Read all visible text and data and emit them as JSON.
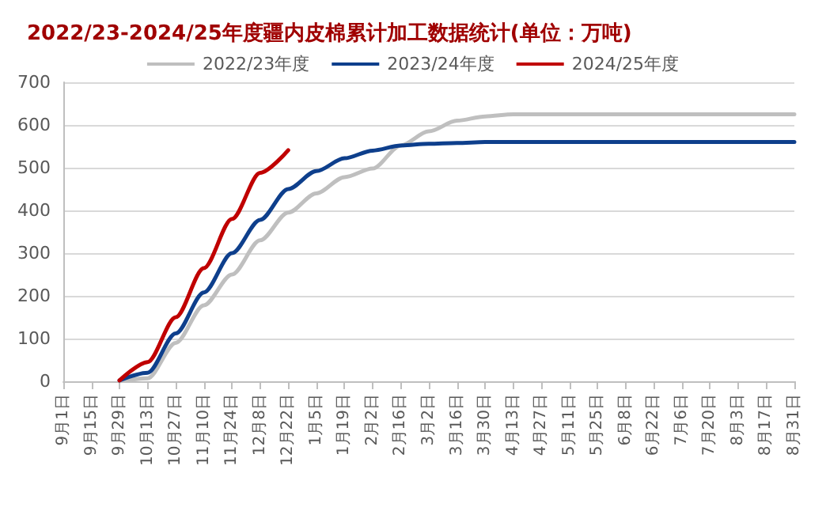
{
  "chart_data": {
    "type": "line",
    "title": "2022/23-2024/25年度疆内皮棉累计加工数据统计(单位：万吨)",
    "categories": [
      "9月1日",
      "9月15日",
      "9月29日",
      "10月13日",
      "10月27日",
      "11月10日",
      "11月24日",
      "12月8日",
      "12月22日",
      "1月5日",
      "1月19日",
      "2月2日",
      "2月16日",
      "3月2日",
      "3月16日",
      "3月30日",
      "4月13日",
      "4月27日",
      "5月11日",
      "5月25日",
      "6月8日",
      "6月22日",
      "7月6日",
      "7月20日",
      "8月3日",
      "8月17日",
      "8月31日"
    ],
    "ylim": [
      0,
      700
    ],
    "yticks": [
      0,
      100,
      200,
      300,
      400,
      500,
      600,
      700
    ],
    "grid": "y",
    "legend": "top",
    "marker": "none",
    "line_style": "solid",
    "series": [
      {
        "name": "2022/23年度",
        "color": "#bfbfbf",
        "values": [
          null,
          null,
          0,
          7,
          90,
          178,
          250,
          330,
          395,
          440,
          478,
          498,
          552,
          585,
          610,
          620,
          625,
          625,
          625,
          625,
          625,
          625,
          625,
          625,
          625,
          625,
          625
        ]
      },
      {
        "name": "2023/24年度",
        "color": "#0e3f8c",
        "values": [
          null,
          null,
          2,
          20,
          112,
          208,
          300,
          378,
          450,
          492,
          522,
          540,
          552,
          556,
          558,
          560,
          560,
          560,
          560,
          560,
          560,
          560,
          560,
          560,
          560,
          560,
          560
        ]
      },
      {
        "name": "2024/25年度",
        "color": "#c00000",
        "values": [
          null,
          null,
          2,
          45,
          150,
          265,
          380,
          488,
          541,
          null,
          null,
          null,
          null,
          null,
          null,
          null,
          null,
          null,
          null,
          null,
          null,
          null,
          null,
          null,
          null,
          null,
          null
        ]
      }
    ]
  }
}
